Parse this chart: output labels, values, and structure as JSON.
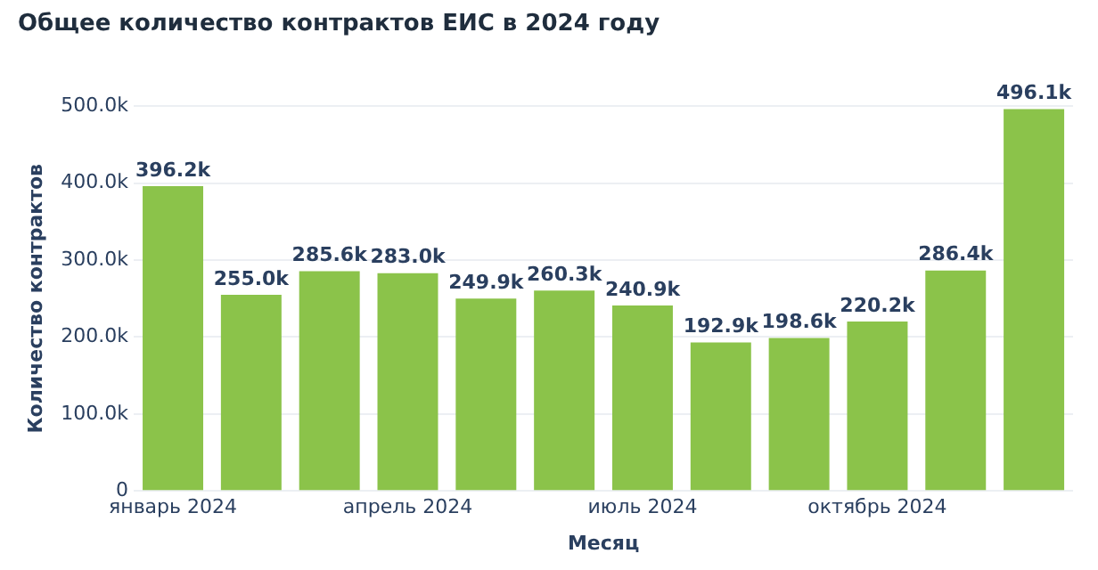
{
  "chart_data": {
    "type": "bar",
    "title": "Общее количество контрактов ЕИС в 2024 году",
    "xlabel": "Месяц",
    "ylabel": "Количество контрактов",
    "categories": [
      "январь 2024",
      null,
      null,
      "апрель 2024",
      null,
      null,
      "июль 2024",
      null,
      null,
      "октябрь 2024",
      null,
      null
    ],
    "values": [
      396200,
      255000,
      285600,
      283000,
      249900,
      260300,
      240900,
      192900,
      198600,
      220200,
      286400,
      496100
    ],
    "value_labels": [
      "396.2k",
      "255.0k",
      "285.6k",
      "283.0k",
      "249.9k",
      "260.3k",
      "240.9k",
      "192.9k",
      "198.6k",
      "220.2k",
      "286.4k",
      "496.1k"
    ],
    "color": "#8bc34a",
    "ylim": [
      0,
      500000
    ],
    "yticks": [
      0,
      {
        "value": 100000,
        "label": "100.0k"
      },
      {
        "value": 200000,
        "label": "200.0k"
      },
      {
        "value": 300000,
        "label": "300.0k"
      },
      {
        "value": 400000,
        "label": "400.0k"
      },
      {
        "value": 500000,
        "label": "500.0k"
      }
    ],
    "grid": "y"
  }
}
